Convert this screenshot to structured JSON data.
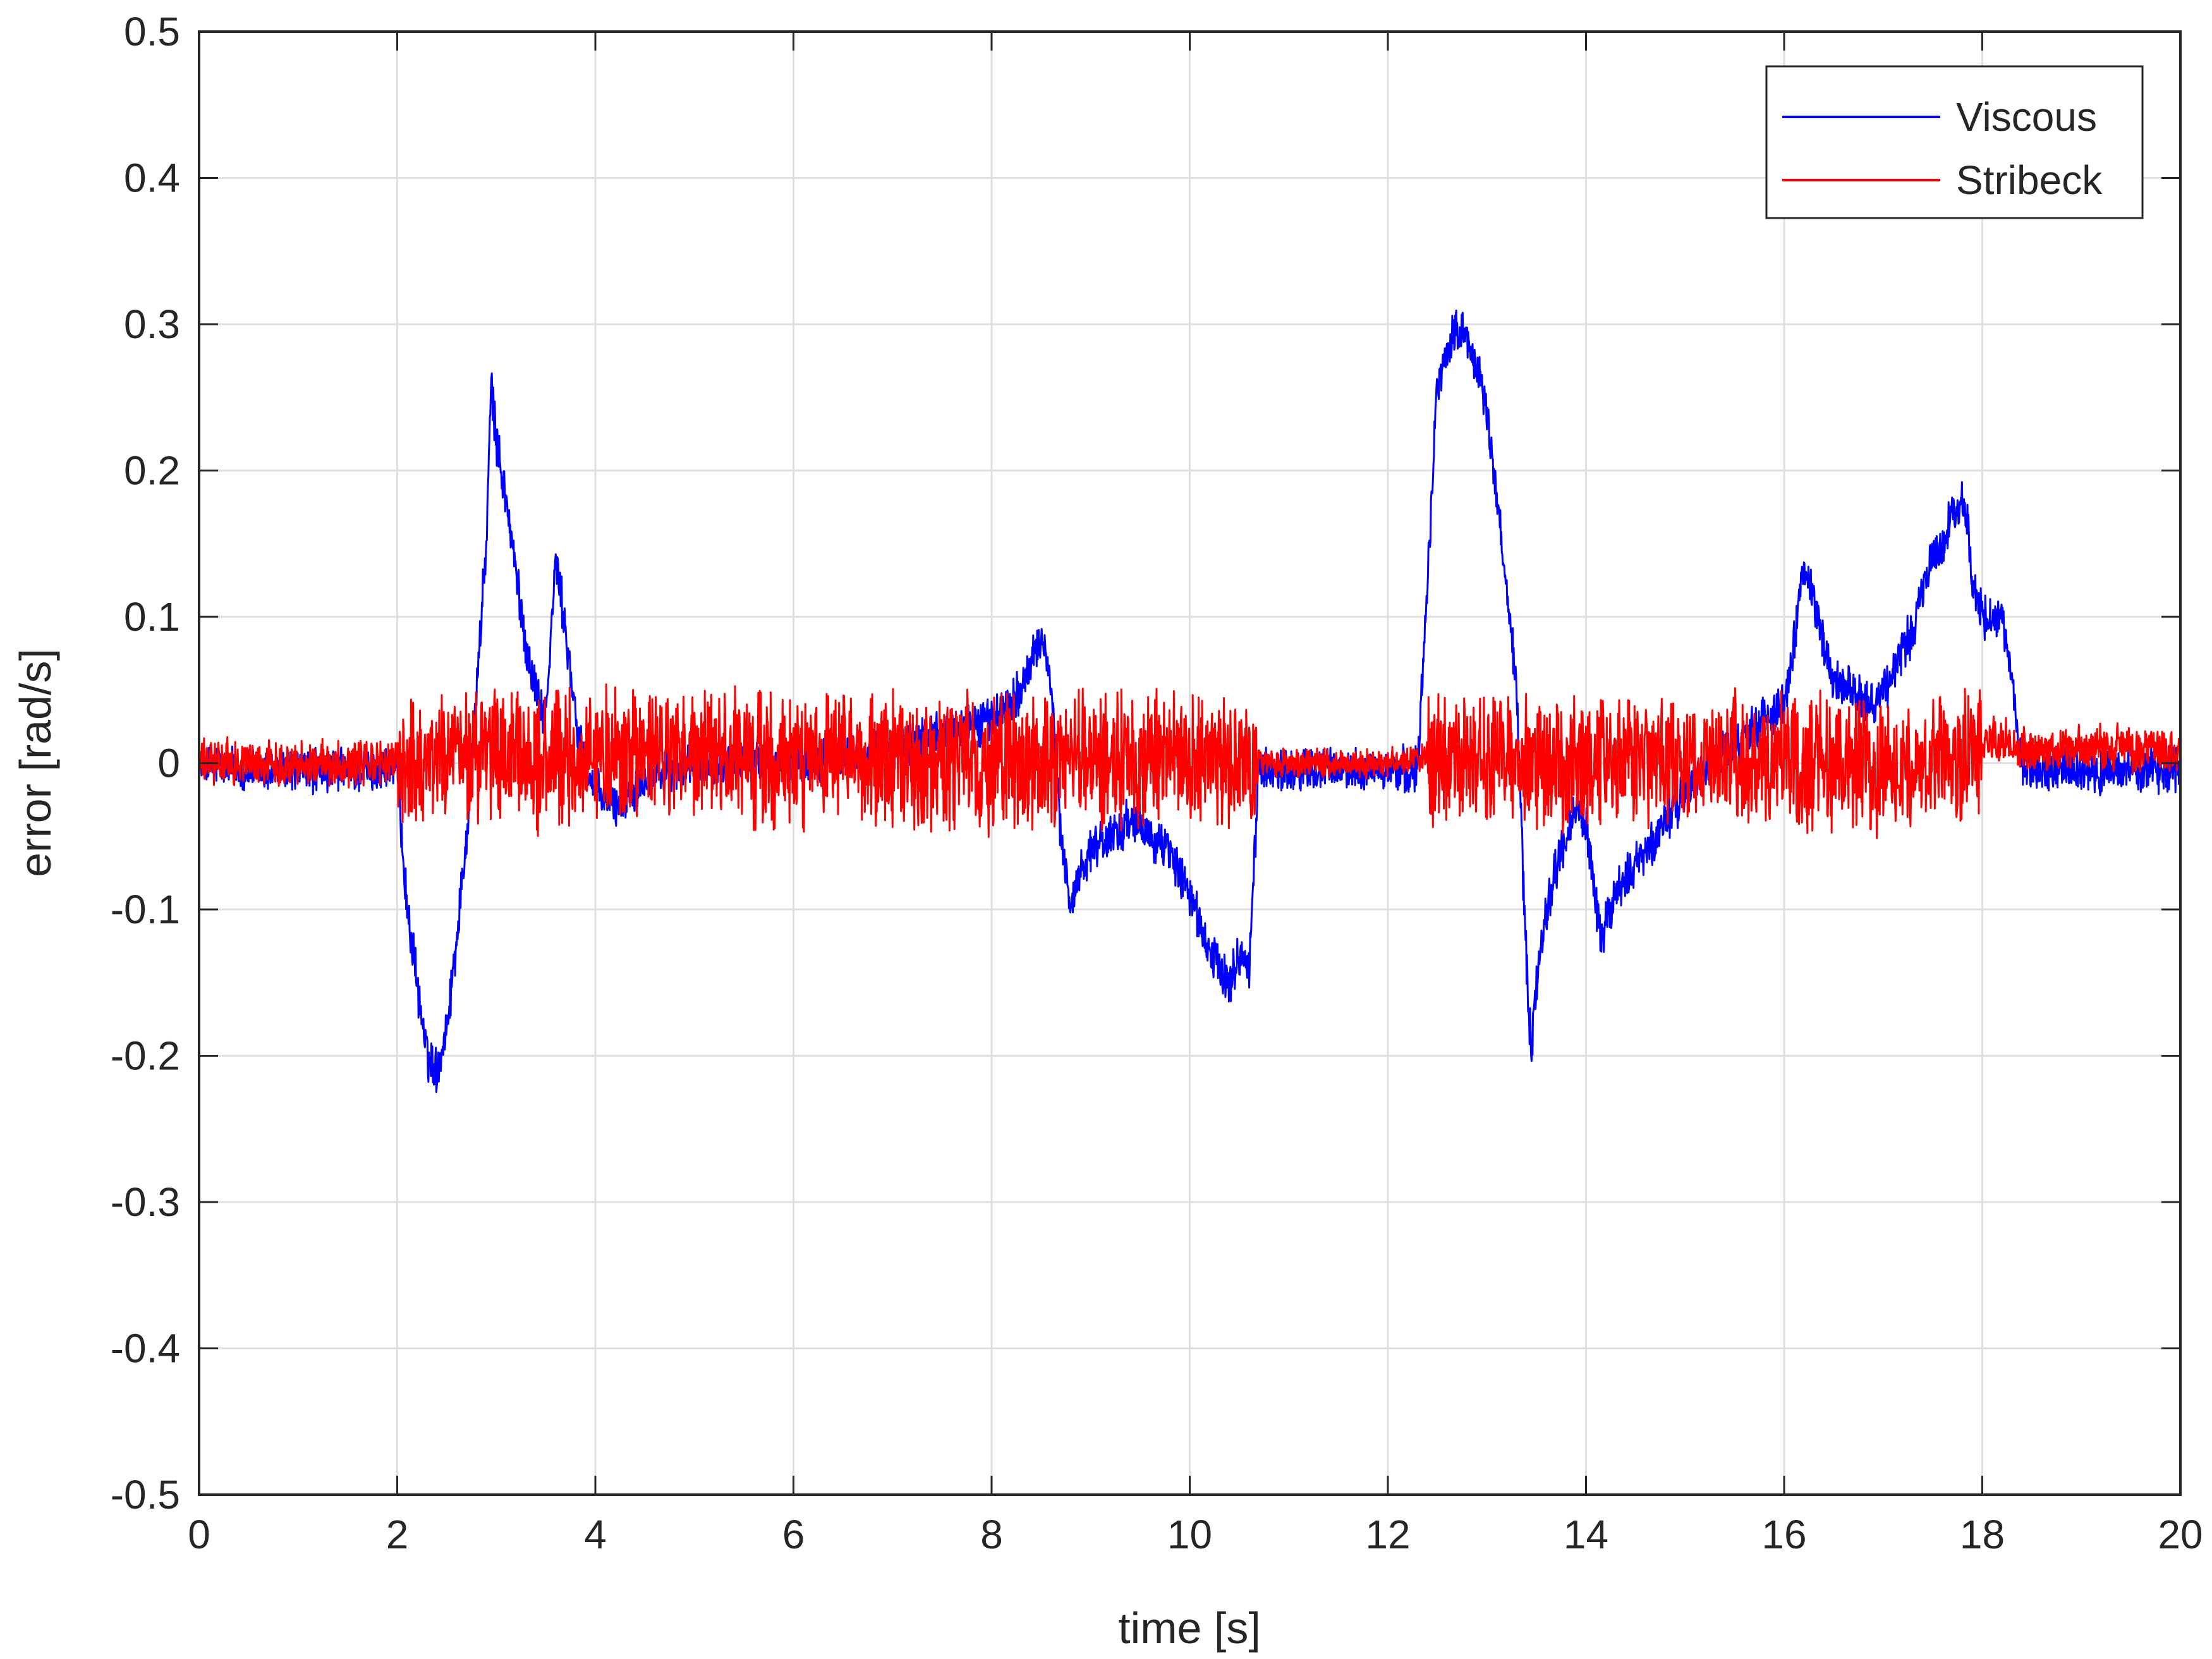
{
  "chart_data": {
    "type": "line",
    "title": "",
    "xlabel": "time [s]",
    "ylabel": "error [rad/s]",
    "xlim": [
      0,
      20
    ],
    "ylim": [
      -0.5,
      0.5
    ],
    "xticks": [
      0,
      2,
      4,
      6,
      8,
      10,
      12,
      14,
      16,
      18,
      20
    ],
    "xtick_labels": [
      "0",
      "2",
      "4",
      "6",
      "8",
      "10",
      "12",
      "14",
      "16",
      "18",
      "20"
    ],
    "yticks": [
      -0.5,
      -0.4,
      -0.3,
      -0.2,
      -0.1,
      0,
      0.1,
      0.2,
      0.3,
      0.4,
      0.5
    ],
    "ytick_labels": [
      "-0.5",
      "-0.4",
      "-0.3",
      "-0.2",
      "-0.1",
      "0",
      "0.1",
      "0.2",
      "0.3",
      "0.4",
      "0.5"
    ],
    "grid": true,
    "legend_position": "top-right",
    "series": [
      {
        "name": "Viscous",
        "color": "#0000ff",
        "x": [
          0,
          0.5,
          1.0,
          1.5,
          2.0,
          2.1,
          2.2,
          2.3,
          2.4,
          2.5,
          2.6,
          2.7,
          2.8,
          2.9,
          2.95,
          3.0,
          3.1,
          3.2,
          3.3,
          3.4,
          3.5,
          3.6,
          3.7,
          3.8,
          3.9,
          4.0,
          4.2,
          4.5,
          5.0,
          5.5,
          6.0,
          6.5,
          7.0,
          7.5,
          8.0,
          8.3,
          8.5,
          8.55,
          8.6,
          8.7,
          8.8,
          8.9,
          9.0,
          9.2,
          9.4,
          9.6,
          9.8,
          10.0,
          10.2,
          10.3,
          10.4,
          10.5,
          10.6,
          10.7,
          10.8,
          11.0,
          11.5,
          12.0,
          12.3,
          12.4,
          12.5,
          12.6,
          12.7,
          12.8,
          12.9,
          13.0,
          13.1,
          13.2,
          13.3,
          13.35,
          13.4,
          13.45,
          13.5,
          13.6,
          13.7,
          13.8,
          13.9,
          14.0,
          14.1,
          14.15,
          14.2,
          14.3,
          14.5,
          14.7,
          14.9,
          15.0,
          15.2,
          15.5,
          15.8,
          16.0,
          16.1,
          16.2,
          16.3,
          16.4,
          16.5,
          16.7,
          16.9,
          17.0,
          17.1,
          17.2,
          17.3,
          17.4,
          17.5,
          17.6,
          17.7,
          17.8,
          17.85,
          17.9,
          18.0,
          18.1,
          18.2,
          18.3,
          18.4,
          18.5,
          18.8,
          19.2,
          19.6,
          20.0
        ],
        "y": [
          0.0,
          -0.005,
          -0.005,
          -0.005,
          -0.005,
          -0.1,
          -0.15,
          -0.2,
          -0.21,
          -0.18,
          -0.12,
          -0.05,
          0.05,
          0.15,
          0.26,
          0.22,
          0.18,
          0.13,
          0.08,
          0.05,
          0.03,
          0.14,
          0.09,
          0.03,
          0.0,
          -0.02,
          -0.03,
          -0.01,
          0.0,
          0.0,
          0.0,
          0.005,
          0.01,
          0.02,
          0.03,
          0.05,
          0.085,
          0.08,
          0.05,
          -0.05,
          -0.1,
          -0.07,
          -0.06,
          -0.05,
          -0.04,
          -0.05,
          -0.06,
          -0.09,
          -0.13,
          -0.14,
          -0.15,
          -0.13,
          -0.14,
          0.0,
          -0.005,
          -0.005,
          -0.005,
          -0.005,
          -0.005,
          0.13,
          0.26,
          0.28,
          0.3,
          0.29,
          0.27,
          0.24,
          0.18,
          0.12,
          0.05,
          -0.05,
          -0.14,
          -0.2,
          -0.15,
          -0.1,
          -0.07,
          -0.05,
          -0.03,
          -0.04,
          -0.1,
          -0.12,
          -0.11,
          -0.09,
          -0.07,
          -0.05,
          -0.03,
          -0.02,
          0.0,
          0.01,
          0.03,
          0.04,
          0.08,
          0.14,
          0.11,
          0.08,
          0.06,
          0.05,
          0.04,
          0.05,
          0.06,
          0.08,
          0.09,
          0.12,
          0.14,
          0.15,
          0.17,
          0.18,
          0.17,
          0.12,
          0.1,
          0.1,
          0.1,
          0.05,
          0.0,
          -0.005,
          -0.005,
          -0.005,
          -0.005,
          -0.005
        ],
        "noise": 0.012
      },
      {
        "name": "Stribeck",
        "color": "#ff0000",
        "x": [
          0,
          1.0,
          2.0,
          2.5,
          3.0,
          3.5,
          4.0,
          5.0,
          6.0,
          7.0,
          8.0,
          8.5,
          9.0,
          9.5,
          10.0,
          10.5,
          10.7,
          11.0,
          11.5,
          12.0,
          12.4,
          12.5,
          13.0,
          14.0,
          15.0,
          16.0,
          17.0,
          17.5,
          18.0,
          18.1,
          18.5,
          19.0,
          20.0
        ],
        "y": [
          0.0,
          0.0,
          0.0,
          0.005,
          0.005,
          0.0,
          0.005,
          0.005,
          0.0,
          0.0,
          0.0,
          0.0,
          0.005,
          0.005,
          0.0,
          0.0,
          0.0,
          0.0,
          0.0,
          0.0,
          0.005,
          0.005,
          0.0,
          0.0,
          0.0,
          0.0,
          0.0,
          0.0,
          0.01,
          0.015,
          0.01,
          0.01,
          0.01
        ],
        "noise_bands": [
          {
            "x": [
              0,
              2.0
            ],
            "amplitude": 0.012
          },
          {
            "x": [
              2.0,
              10.7
            ],
            "amplitude": 0.035
          },
          {
            "x": [
              10.7,
              12.4
            ],
            "amplitude": 0.008
          },
          {
            "x": [
              12.4,
              18.0
            ],
            "amplitude": 0.035
          },
          {
            "x": [
              18.0,
              20.0
            ],
            "amplitude": 0.012
          }
        ]
      }
    ]
  }
}
